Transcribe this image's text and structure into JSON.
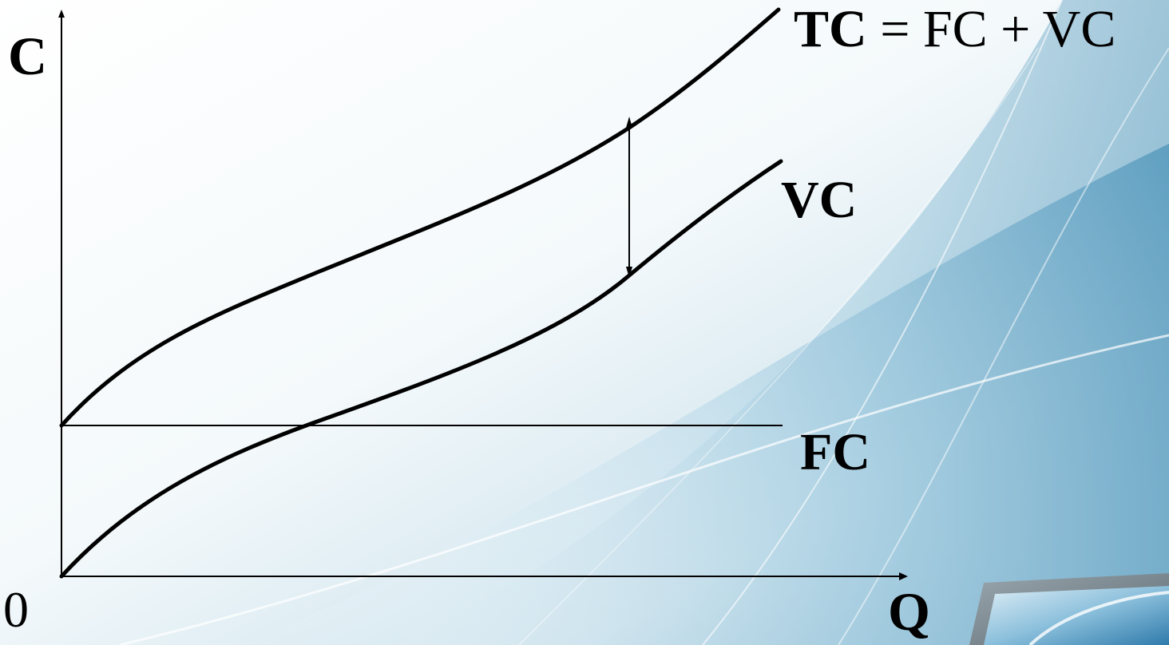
{
  "labels": {
    "y_axis": "C",
    "x_axis": "Q",
    "origin": "0",
    "tc_bold": "TC",
    "tc_rest": " = FC + VC",
    "vc": "VC",
    "fc": "FC"
  },
  "colors": {
    "curve": "#000000",
    "background": "#ffffff",
    "swoosh_light": "#d7e9f2",
    "swoosh_mid": "#8ec0d8",
    "swoosh_dark": "#4e94b8"
  }
}
